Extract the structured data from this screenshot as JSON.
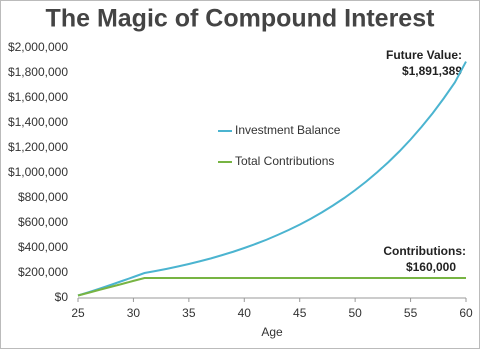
{
  "chart_data": {
    "type": "line",
    "title": "The Magic of Compound Interest",
    "x_label": "Age",
    "x": [
      25,
      26,
      27,
      28,
      29,
      30,
      31,
      32,
      33,
      34,
      35,
      36,
      37,
      38,
      39,
      40,
      41,
      42,
      43,
      44,
      45,
      46,
      47,
      48,
      49,
      50,
      51,
      52,
      53,
      54,
      55,
      56,
      57,
      58,
      59,
      60
    ],
    "series": [
      {
        "name": "Investment Balance",
        "color": "#4bb4d0",
        "values": [
          20000,
          47000,
          76000,
          106000,
          137000,
          168000,
          200000,
          216000,
          233000,
          252000,
          272000,
          294000,
          317000,
          343000,
          370000,
          400000,
          432000,
          466000,
          504000,
          544000,
          587000,
          634000,
          685000,
          740000,
          799000,
          863000,
          932000,
          1007000,
          1087000,
          1174000,
          1268000,
          1370000,
          1479000,
          1598000,
          1725000,
          1891389
        ]
      },
      {
        "name": "Total Contributions",
        "color": "#77b443",
        "values": [
          20000,
          43000,
          67000,
          90000,
          113000,
          137000,
          160000,
          160000,
          160000,
          160000,
          160000,
          160000,
          160000,
          160000,
          160000,
          160000,
          160000,
          160000,
          160000,
          160000,
          160000,
          160000,
          160000,
          160000,
          160000,
          160000,
          160000,
          160000,
          160000,
          160000,
          160000,
          160000,
          160000,
          160000,
          160000,
          160000
        ]
      }
    ],
    "xlim": [
      25,
      60
    ],
    "xticks": [
      25,
      30,
      35,
      40,
      45,
      50,
      55,
      60
    ],
    "ylim": [
      0,
      2000000
    ],
    "yticks": [
      {
        "value": 0,
        "label": "$0"
      },
      {
        "value": 200000,
        "label": "$200,000"
      },
      {
        "value": 400000,
        "label": "$400,000"
      },
      {
        "value": 600000,
        "label": "$600,000"
      },
      {
        "value": 800000,
        "label": "$800,000"
      },
      {
        "value": 1000000,
        "label": "$1,000,000"
      },
      {
        "value": 1200000,
        "label": "$1,200,000"
      },
      {
        "value": 1400000,
        "label": "$1,400,000"
      },
      {
        "value": 1600000,
        "label": "$1,600,000"
      },
      {
        "value": 1800000,
        "label": "$1,800,000"
      },
      {
        "value": 2000000,
        "label": "$2,000,000"
      }
    ],
    "grid": false,
    "annotations": [
      {
        "title": "Future Value:",
        "label": "$1,891,389"
      },
      {
        "title": "Contributions:",
        "label": "$160,000"
      }
    ]
  }
}
